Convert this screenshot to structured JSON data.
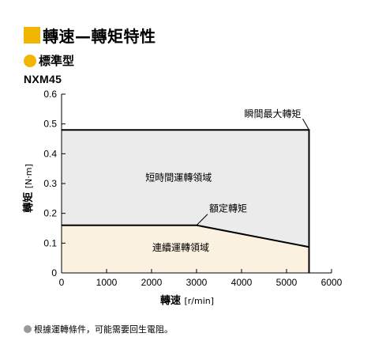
{
  "header": {
    "title": "轉速—轉矩特性",
    "subtitle": "標準型",
    "model": "NXM45",
    "square_color": "#f2b600",
    "dot_color": "#f2b600"
  },
  "note": {
    "text": "根據運轉條件，可能需要回生電阻。",
    "dot_color": "#9a9a9a"
  },
  "chart_data": {
    "type": "area",
    "xlabel": "轉速",
    "xlabel_unit": "[r/min]",
    "ylabel": "轉矩",
    "ylabel_unit": "[N·m]",
    "xlim": [
      0,
      6000
    ],
    "ylim": [
      0,
      0.6
    ],
    "xticks": [
      0,
      1000,
      2000,
      3000,
      4000,
      5000,
      6000
    ],
    "yticks": [
      0,
      0.1,
      0.2,
      0.3,
      0.4,
      0.5,
      0.6
    ],
    "ytick_labels": [
      "0",
      "0.1",
      "0.2",
      "0.3",
      "0.4",
      "0.5",
      "0.6"
    ],
    "grid": false,
    "series": [
      {
        "name": "瞬間最大轉矩",
        "x": [
          0,
          5500,
          5500
        ],
        "y": [
          0.48,
          0.48,
          0
        ],
        "fill": "#ebebeb"
      },
      {
        "name": "額定轉矩",
        "x": [
          0,
          3000,
          5500
        ],
        "y": [
          0.16,
          0.16,
          0.087
        ],
        "fill": "#fbf1e1"
      }
    ],
    "regions": [
      {
        "label": "短時間運轉領域"
      },
      {
        "label": "連續運轉領域"
      }
    ],
    "annotations": [
      {
        "text": "瞬間最大轉矩"
      },
      {
        "text": "額定轉矩"
      }
    ]
  }
}
